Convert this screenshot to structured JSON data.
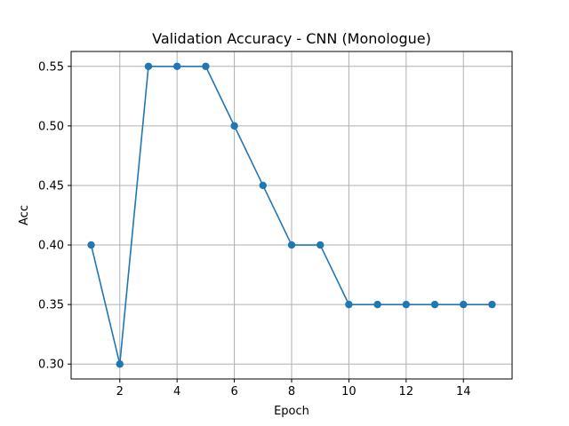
{
  "chart_data": {
    "type": "line",
    "title": "Validation Accuracy - CNN (Monologue)",
    "xlabel": "Epoch",
    "ylabel": "Acc",
    "xlim": [
      0.3,
      15.7
    ],
    "ylim": [
      0.2875,
      0.5625
    ],
    "xticks": [
      2,
      4,
      6,
      8,
      10,
      12,
      14
    ],
    "yticks": [
      0.3,
      0.35,
      0.4,
      0.45,
      0.5,
      0.55
    ],
    "grid": true,
    "series": [
      {
        "color": "#1f77b4",
        "marker": "circle",
        "x": [
          1,
          2,
          3,
          4,
          5,
          6,
          7,
          8,
          9,
          10,
          11,
          12,
          13,
          14,
          15
        ],
        "y": [
          0.4,
          0.3,
          0.55,
          0.55,
          0.55,
          0.5,
          0.45,
          0.4,
          0.4,
          0.35,
          0.35,
          0.35,
          0.35,
          0.35,
          0.35
        ]
      }
    ]
  }
}
